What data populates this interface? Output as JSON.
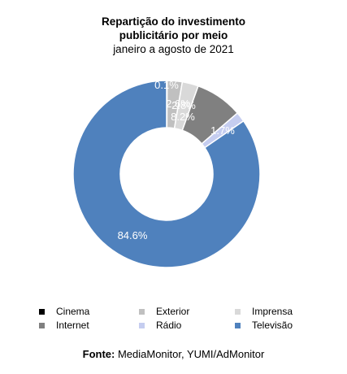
{
  "chart_data": {
    "type": "pie",
    "title_lines": [
      "Repartição do investimento",
      "publicitário por meio"
    ],
    "subtitle": "janeiro a agosto de 2021",
    "categories": [
      "Cinema",
      "Exterior",
      "Imprensa",
      "Internet",
      "Rádio",
      "Televisão"
    ],
    "values": [
      0.1,
      2.6,
      2.8,
      8.2,
      1.7,
      84.6
    ],
    "value_labels": [
      "0.1%",
      "2.6%",
      "2.8%",
      "8.2%",
      "1.7%",
      "84.6%"
    ],
    "colors": [
      "#000000",
      "#c0c0c0",
      "#d9d9d9",
      "#808080",
      "#c5cdf0",
      "#4f81bd"
    ],
    "donut": true,
    "legend_position": "bottom"
  },
  "source": {
    "label": "Fonte:",
    "text": "MediaMonitor, YUMI/AdMonitor"
  }
}
